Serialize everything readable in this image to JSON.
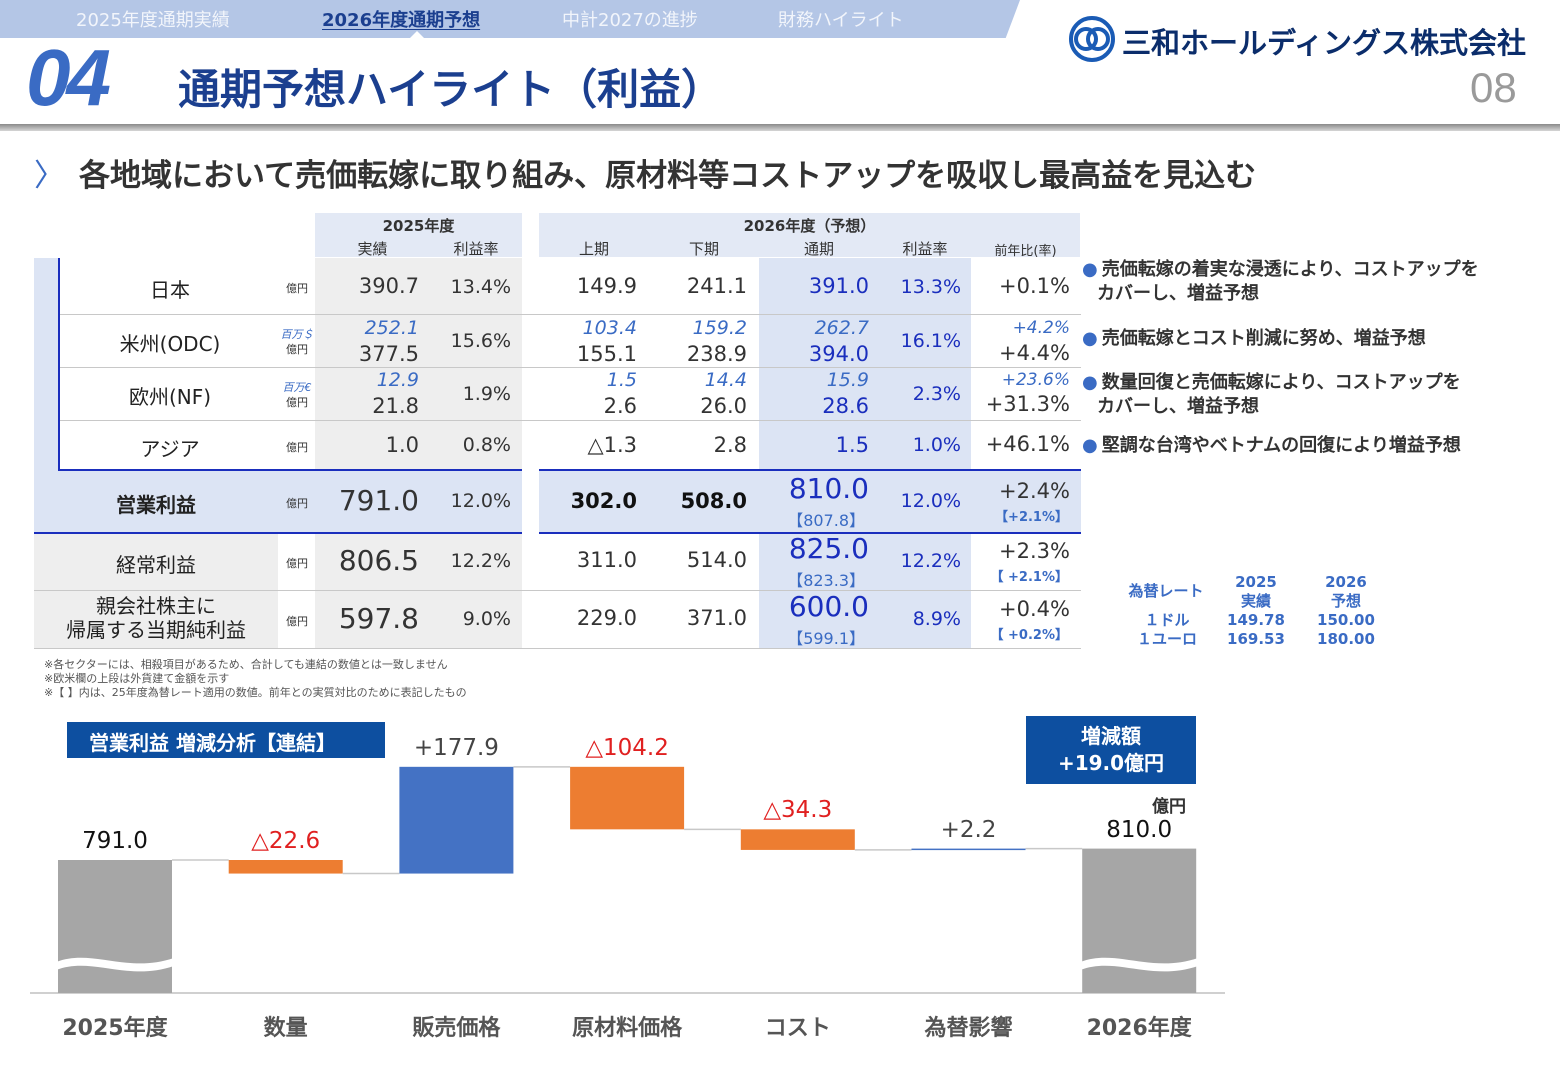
{
  "nav": {
    "tabs": [
      "2025年度通期実績",
      "2026年度通期予想",
      "中計2027の進捗",
      "財務ハイライト"
    ],
    "active_index": 1
  },
  "header": {
    "section_number": "04",
    "title": "通期予想ハイライト（利益）",
    "company": "三和ホールディングス株式会社",
    "page_number": "08"
  },
  "subtitle": "各地域において売価転嫁に取り組み、原材料等コストアップを吸収し最高益を見込む",
  "table": {
    "group_2025": "2025年度",
    "group_2026": "2026年度（予想）",
    "col_actual": "実績",
    "col_margin": "利益率",
    "col_h1": "上期",
    "col_h2": "下期",
    "col_full": "通期",
    "col_margin2": "利益率",
    "col_yoy": "前年比(率)",
    "rows": {
      "japan": {
        "label": "日本",
        "unit": "億円",
        "actual": "390.7",
        "margin": "13.4%",
        "h1": "149.9",
        "h2": "241.1",
        "full": "391.0",
        "margin26": "13.3%",
        "yoy": "+0.1%"
      },
      "americas": {
        "label": "米州(ODC)",
        "unit_fx": "百万＄",
        "unit": "億円",
        "actual_fx": "252.1",
        "actual": "377.5",
        "margin": "15.6%",
        "h1_fx": "103.4",
        "h1": "155.1",
        "h2_fx": "159.2",
        "h2": "238.9",
        "full_fx": "262.7",
        "full": "394.0",
        "margin26": "16.1%",
        "yoy_fx": "+4.2%",
        "yoy": "+4.4%"
      },
      "europe": {
        "label": "欧州(NF)",
        "unit_fx": "百万€",
        "unit": "億円",
        "actual_fx": "12.9",
        "actual": "21.8",
        "margin": "1.9%",
        "h1_fx": "1.5",
        "h1": "2.6",
        "h2_fx": "14.4",
        "h2": "26.0",
        "full_fx": "15.9",
        "full": "28.6",
        "margin26": "2.3%",
        "yoy_fx": "+23.6%",
        "yoy": "+31.3%"
      },
      "asia": {
        "label": "アジア",
        "unit": "億円",
        "actual": "1.0",
        "margin": "0.8%",
        "h1": "△1.3",
        "h2": "2.8",
        "full": "1.5",
        "margin26": "1.0%",
        "yoy": "+46.1%"
      },
      "operating": {
        "label": "営業利益",
        "unit": "億円",
        "actual": "791.0",
        "margin": "12.0%",
        "h1": "302.0",
        "h2": "508.0",
        "full": "810.0",
        "full_bracket": "【807.8】",
        "margin26": "12.0%",
        "yoy": "+2.4%",
        "yoy_bracket": "【+2.1%】"
      },
      "ordinary": {
        "label": "経常利益",
        "unit": "億円",
        "actual": "806.5",
        "margin": "12.2%",
        "h1": "311.0",
        "h2": "514.0",
        "full": "825.0",
        "full_bracket": "【823.3】",
        "margin26": "12.2%",
        "yoy": "+2.3%",
        "yoy_bracket": "【 +2.1%】"
      },
      "net": {
        "label1": "親会社株主に",
        "label2": "帰属する当期純利益",
        "unit": "億円",
        "actual": "597.8",
        "margin": "9.0%",
        "h1": "229.0",
        "h2": "371.0",
        "full": "600.0",
        "full_bracket": "【599.1】",
        "margin26": "8.9%",
        "yoy": "+0.4%",
        "yoy_bracket": "【 +0.2%】"
      }
    },
    "notes": [
      "※各セクターには、相殺項目があるため、合計しても連結の数値とは一致しません",
      "※欧米欄の上段は外貨建て金額を示す",
      "※【 】内は、25年度為替レート適用の数値。前年との実質対比のために表記したもの"
    ]
  },
  "comments": {
    "japan": [
      "売価転嫁の着実な浸透により、コストアップを",
      "カバーし、増益予想"
    ],
    "americas": [
      "売価転嫁とコスト削減に努め、増益予想"
    ],
    "europe": [
      "数量回復と売価転嫁により、コストアップを",
      "カバーし、増益予想"
    ],
    "asia": [
      "堅調な台湾やベトナムの回復により増益予想"
    ]
  },
  "fx": {
    "label": "為替レート",
    "h2025a": "2025",
    "h2025b": "実績",
    "h2026a": "2026",
    "h2026b": "予想",
    "usd_label": "１ドル",
    "eur_label": "１ユーロ",
    "usd_2025": "149.78",
    "usd_2026": "150.00",
    "eur_2025": "169.53",
    "eur_2026": "180.00"
  },
  "waterfall": {
    "title": "営業利益 増減分析【連結】",
    "total_label": "増減額",
    "total_value": "+19.0億円",
    "unit": "億円",
    "colors": {
      "base": "#a6a6a6",
      "increase": "#4472c4",
      "decrease": "#ed7d31",
      "neg_text": "#e02020"
    },
    "chart_data": {
      "type": "waterfall",
      "categories": [
        "2025年度",
        "数量",
        "販売価格",
        "原材料価格",
        "コスト",
        "為替影響",
        "2026年度"
      ],
      "values": [
        791.0,
        -22.6,
        177.9,
        -104.2,
        -34.3,
        2.2,
        810.0
      ],
      "labels": [
        "791.0",
        "△22.6",
        "+177.9",
        "△104.2",
        "△34.3",
        "+2.2",
        "810.0"
      ],
      "kinds": [
        "total",
        "delta",
        "delta",
        "delta",
        "delta",
        "delta",
        "total"
      ],
      "ylabel": "億円"
    }
  }
}
